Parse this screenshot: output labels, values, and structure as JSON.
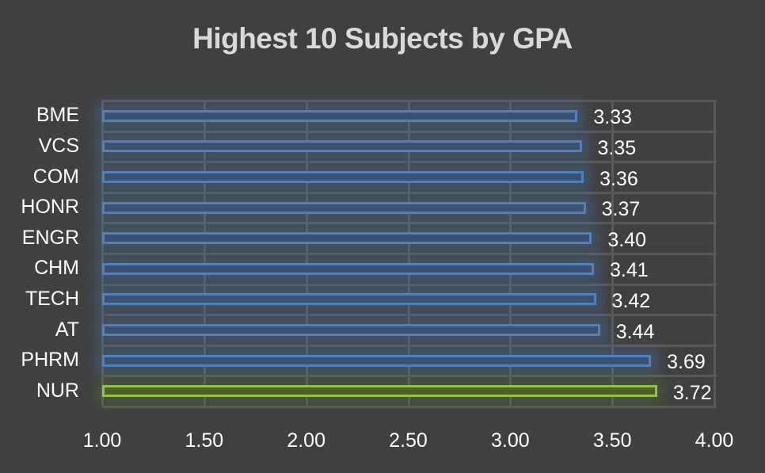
{
  "title": "Highest 10 Subjects by GPA",
  "colors": {
    "background": "#404040",
    "bar_default": "#4f81bd",
    "bar_highlight": "#8cc640",
    "grid": "#595959",
    "text": "#ffffff",
    "title": "#d9d9d9"
  },
  "chart_data": {
    "type": "bar",
    "orientation": "horizontal",
    "title": "Highest 10 Subjects by GPA",
    "xlabel": "",
    "ylabel": "",
    "categories": [
      "BME",
      "VCS",
      "COM",
      "HONR",
      "ENGR",
      "CHM",
      "TECH",
      "AT",
      "PHRM",
      "NUR"
    ],
    "values": [
      3.33,
      3.35,
      3.36,
      3.37,
      3.4,
      3.41,
      3.42,
      3.44,
      3.69,
      3.72
    ],
    "value_labels": [
      "3.33",
      "3.35",
      "3.36",
      "3.37",
      "3.40",
      "3.41",
      "3.42",
      "3.44",
      "3.69",
      "3.72"
    ],
    "highlight": "NUR",
    "xlim": [
      1.0,
      4.0
    ],
    "x_ticks": [
      "1.00",
      "1.50",
      "2.00",
      "2.50",
      "3.00",
      "3.50",
      "4.00"
    ],
    "grid": true,
    "legend": null
  }
}
